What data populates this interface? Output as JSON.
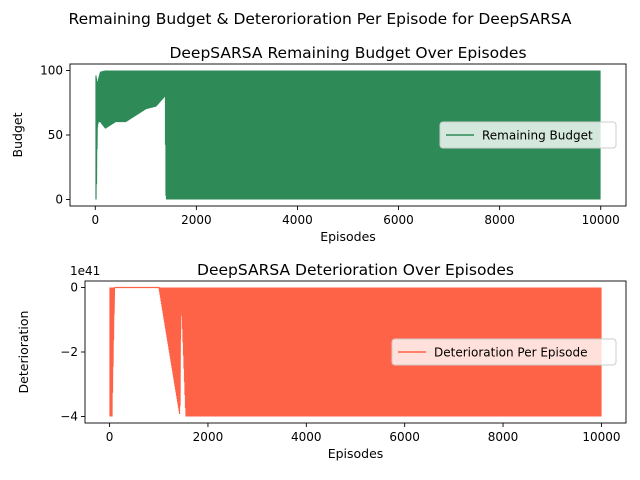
{
  "figure": {
    "suptitle": "Remaining Budget & Deterorioration Per Episode for DeepSARSA"
  },
  "chart_data": [
    {
      "type": "line",
      "title": "DeepSARSA Remaining Budget Over Episodes",
      "xlabel": "Episodes",
      "ylabel": "Budget",
      "xlim": [
        -500,
        10500
      ],
      "ylim": [
        -5,
        105
      ],
      "xticks": [
        0,
        2000,
        4000,
        6000,
        8000,
        10000
      ],
      "yticks": [
        0,
        50,
        100
      ],
      "legend": {
        "placement": "center-right"
      },
      "series": [
        {
          "name": "Remaining Budget",
          "color": "#2e8b57",
          "approx_profile": {
            "x": [
              0,
              5,
              20,
              40,
              60,
              100,
              200,
              400,
              600,
              800,
              1000,
              1200,
              1380,
              1400,
              1500,
              2000,
              3000,
              3500,
              4000,
              5000,
              6000,
              7000,
              8000,
              9000,
              10000
            ],
            "y_max": [
              75,
              98,
              95,
              90,
              93,
              99,
              100,
              100,
              100,
              100,
              100,
              100,
              100,
              100,
              100,
              100,
              100,
              100,
              100,
              100,
              100,
              100,
              100,
              100,
              100
            ],
            "y_min": [
              0,
              0,
              0,
              55,
              60,
              60,
              55,
              60,
              60,
              65,
              70,
              72,
              80,
              0,
              0,
              0,
              0,
              0,
              0,
              0,
              0,
              0,
              0,
              0,
              0
            ]
          }
        }
      ]
    },
    {
      "type": "line",
      "title": "DeepSARSA Deterioration Over Episodes",
      "xlabel": "Episodes",
      "ylabel": "Deterioration",
      "offset_text": "1e41",
      "xlim": [
        -500,
        10500
      ],
      "ylim": [
        -4.2,
        0.2
      ],
      "xticks": [
        0,
        2000,
        4000,
        6000,
        8000,
        10000
      ],
      "yticks": [
        -4,
        -2,
        0
      ],
      "legend": {
        "placement": "center-right"
      },
      "series": [
        {
          "name": "Deterioration Per Episode",
          "color": "#ff6347",
          "approx_profile": {
            "x": [
              0,
              50,
              100,
              1000,
              1430,
              1450,
              1550,
              2000,
              4000,
              6000,
              8000,
              10000
            ],
            "y_max": [
              0,
              0,
              0,
              0,
              0,
              0,
              0,
              0,
              0,
              0,
              0,
              0
            ],
            "y_min": [
              -4,
              -4,
              0,
              0,
              -4,
              0,
              -4,
              -4,
              -4,
              -4,
              -4,
              -4
            ]
          }
        }
      ]
    }
  ]
}
